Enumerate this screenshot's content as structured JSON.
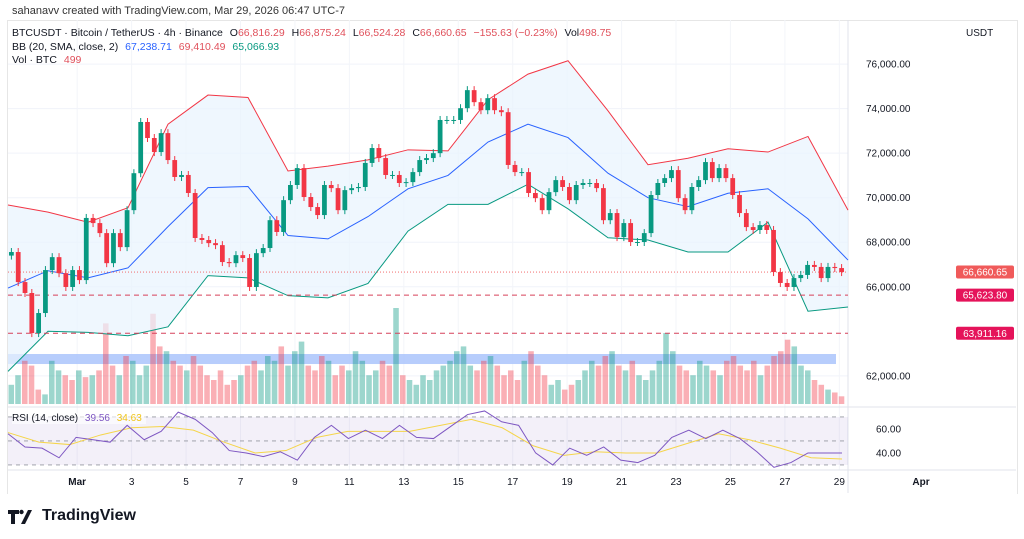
{
  "credit": "sahanavv created with TradingView.com, Mar 29, 2026 06:47 UTC-7",
  "legend": {
    "symbol": "BTCUSDT · Bitcoin / TetherUS · 4h · Binance",
    "o_label": "O",
    "open": "66,816.29",
    "h_label": "H",
    "high": "66,875.24",
    "l_label": "L",
    "low": "66,524.28",
    "c_label": "C",
    "close": "66,660.65",
    "change": "−155.63 (−0.23%)",
    "vol_label": "Vol",
    "vol": "498.75",
    "bb_label": "BB (20, SMA, close, 2)",
    "bb_basis": "67,238.71",
    "bb_upper": "69,410.49",
    "bb_lower": "65,066.93",
    "vol_ind_label": "Vol · BTC",
    "vol_ind_value": "499",
    "rsi_label": "RSI (14, close)",
    "rsi_value": "39.56",
    "rsi_ma": "34.63"
  },
  "price_axis_unit": "USDT",
  "brand": "TradingView",
  "colors": {
    "up": "#089981",
    "down": "#f23645",
    "bb_upper": "#f23645",
    "bb_basis": "#2962ff",
    "bb_lower": "#089981",
    "bb_fill": "#e8f3fd",
    "rsi": "#7e57c2",
    "rsi_ma": "#f5d54a",
    "last_price_tag": "#f05a5a",
    "level_tag": "#e5135a",
    "zone": "#aac4fb"
  },
  "chart_data": [
    {
      "type": "candlestick",
      "title": "BTCUSDT · Bitcoin / TetherUS · 4h · Binance",
      "x_range": [
        "2026-02-26T11:00",
        "2026-03-29T05:00"
      ],
      "ylim": [
        60600,
        77980
      ],
      "grid": true,
      "first_open": 67400,
      "closes": [
        67560,
        66210,
        65720,
        63920,
        64820,
        66750,
        67330,
        66610,
        65990,
        66750,
        66300,
        69090,
        68860,
        68410,
        67060,
        68410,
        67780,
        69440,
        71100,
        73400,
        72680,
        72050,
        72900,
        71690,
        70930,
        71020,
        70210,
        68190,
        68100,
        67960,
        67870,
        67110,
        67060,
        67420,
        67290,
        65990,
        67510,
        67740,
        68990,
        68460,
        69890,
        70570,
        71330,
        70030,
        69580,
        69220,
        70570,
        70430,
        69440,
        70340,
        70430,
        70480,
        71560,
        72230,
        71780,
        71020,
        71020,
        70660,
        70700,
        71150,
        71690,
        71780,
        72000,
        73490,
        73490,
        73490,
        74020,
        74830,
        74290,
        73930,
        74470,
        73930,
        73840,
        71470,
        71150,
        71150,
        70210,
        69980,
        69440,
        70250,
        70790,
        70480,
        69890,
        70570,
        70660,
        70660,
        70430,
        68990,
        69310,
        68230,
        68860,
        68010,
        68010,
        68410,
        70120,
        70660,
        70880,
        71240,
        69980,
        69440,
        70480,
        70790,
        71600,
        70880,
        71330,
        70880,
        70120,
        69310,
        68680,
        68550,
        68770,
        68550,
        66660,
        66170,
        65990,
        66390,
        66530,
        66980,
        66890,
        66390,
        66890,
        66840,
        66660
      ],
      "bollinger": {
        "upper": [
          69670,
          69350,
          68900,
          69550,
          73300,
          74610,
          74500,
          71200,
          71420,
          71700,
          72150,
          72100,
          74400,
          75550,
          76150,
          73900,
          71480,
          71770,
          72200,
          72050,
          72750,
          69440
        ],
        "basis": [
          65940,
          66720,
          66400,
          66850,
          68700,
          70450,
          70500,
          68300,
          68150,
          69150,
          70400,
          71000,
          72500,
          73300,
          72700,
          71100,
          70000,
          69600,
          70200,
          70400,
          69050,
          67200
        ],
        "lower": [
          62200,
          64000,
          63950,
          63800,
          64200,
          66500,
          66400,
          65600,
          65500,
          66150,
          68500,
          69700,
          69700,
          70600,
          69500,
          68200,
          68100,
          67560,
          67560,
          68900,
          64900,
          65090
        ]
      },
      "volume_relative": [
        20,
        30,
        45,
        40,
        15,
        10,
        45,
        35,
        30,
        25,
        35,
        28,
        30,
        35,
        84,
        40,
        30,
        50,
        45,
        30,
        40,
        94,
        60,
        55,
        45,
        40,
        35,
        50,
        40,
        30,
        25,
        35,
        20,
        25,
        30,
        40,
        45,
        35,
        50,
        45,
        60,
        40,
        55,
        65,
        40,
        35,
        50,
        45,
        30,
        40,
        35,
        55,
        45,
        30,
        35,
        45,
        40,
        100,
        30,
        25,
        20,
        30,
        25,
        35,
        40,
        45,
        55,
        60,
        40,
        35,
        45,
        50,
        40,
        30,
        35,
        25,
        45,
        55,
        40,
        30,
        20,
        25,
        15,
        20,
        25,
        35,
        45,
        40,
        50,
        55,
        40,
        35,
        45,
        30,
        25,
        35,
        45,
        74,
        55,
        40,
        35,
        30,
        45,
        40,
        35,
        30,
        45,
        50,
        40,
        35,
        45,
        30,
        40,
        50,
        55,
        67,
        60,
        40,
        35,
        25,
        20,
        15,
        12,
        8
      ],
      "last_price": {
        "value": 66660.65,
        "label": "66,660.65"
      },
      "levels": [
        {
          "value": 65623.8,
          "label": "65,623.80"
        },
        {
          "value": 63911.16,
          "label": "63,911.16"
        }
      ],
      "zone": [
        62530,
        62980
      ],
      "y_ticks": [
        {
          "value": 76000,
          "label": "76,000.00"
        },
        {
          "value": 74000,
          "label": "74,000.00"
        },
        {
          "value": 72000,
          "label": "72,000.00"
        },
        {
          "value": 70000,
          "label": "70,000.00"
        },
        {
          "value": 68000,
          "label": "68,000.00"
        },
        {
          "value": 66000,
          "label": "66,000.00"
        },
        {
          "value": 62000,
          "label": "62,000.00"
        }
      ]
    },
    {
      "type": "line",
      "title": "RSI (14, close)",
      "ylim": [
        25.8,
        78.3
      ],
      "bands": [
        30,
        50,
        70
      ],
      "rsi": [
        56,
        45,
        44,
        36,
        53,
        51,
        49,
        63,
        51,
        58,
        74,
        68,
        57,
        42,
        40,
        37,
        41,
        34,
        53,
        63,
        52,
        59,
        52,
        63,
        53,
        52,
        62,
        72,
        75,
        66,
        63,
        40,
        30,
        44,
        38,
        45,
        34,
        32,
        38,
        53,
        59,
        52,
        59,
        52,
        41,
        28,
        32,
        40,
        40,
        40
      ],
      "rsi_ma": [
        57,
        49,
        47,
        55,
        61,
        62,
        59,
        49,
        40,
        42,
        53,
        58,
        58,
        58,
        63,
        68,
        61,
        46,
        38,
        41,
        40,
        40,
        48,
        56,
        51,
        44,
        36,
        35
      ],
      "y_ticks": [
        {
          "value": 60,
          "label": "60.00"
        },
        {
          "value": 40,
          "label": "40.00"
        }
      ]
    }
  ],
  "x_ticks": [
    {
      "date": "2026-03-01T00:00",
      "label": "Mar",
      "bold": true
    },
    {
      "date": "2026-03-03T00:00",
      "label": "3"
    },
    {
      "date": "2026-03-05T00:00",
      "label": "5"
    },
    {
      "date": "2026-03-07T00:00",
      "label": "7"
    },
    {
      "date": "2026-03-09T00:00",
      "label": "9"
    },
    {
      "date": "2026-03-11T00:00",
      "label": "11"
    },
    {
      "date": "2026-03-13T00:00",
      "label": "13"
    },
    {
      "date": "2026-03-15T00:00",
      "label": "15"
    },
    {
      "date": "2026-03-17T00:00",
      "label": "17"
    },
    {
      "date": "2026-03-19T00:00",
      "label": "19"
    },
    {
      "date": "2026-03-21T00:00",
      "label": "21"
    },
    {
      "date": "2026-03-23T00:00",
      "label": "23"
    },
    {
      "date": "2026-03-25T00:00",
      "label": "25"
    },
    {
      "date": "2026-03-27T00:00",
      "label": "27"
    },
    {
      "date": "2026-03-29T00:00",
      "label": "29"
    },
    {
      "date": "2026-04-01T00:00",
      "label": "Apr",
      "bold": true
    }
  ]
}
